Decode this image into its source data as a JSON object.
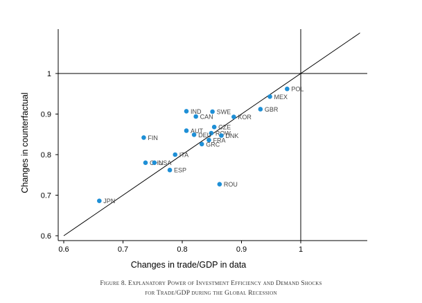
{
  "chart_data": {
    "type": "scatter",
    "xlabel": "Changes in trade/GDP in data",
    "ylabel": "Changes in counterfactual",
    "xlim": [
      0.6,
      1.1
    ],
    "ylim": [
      0.6,
      1.0
    ],
    "xticks": [
      "0.6",
      "0.7",
      "0.8",
      "0.9",
      "1"
    ],
    "yticks": [
      "0.6",
      "0.7",
      "0.8",
      "0.9",
      "1"
    ],
    "reference_lines": [
      "45-degree line",
      "x = 1",
      "y = 1"
    ],
    "marker_color": "#1e8fd6",
    "points": [
      {
        "label": "POL",
        "x": 0.977,
        "y": 0.962
      },
      {
        "label": "MEX",
        "x": 0.948,
        "y": 0.943
      },
      {
        "label": "GBR",
        "x": 0.932,
        "y": 0.912
      },
      {
        "label": "IND",
        "x": 0.807,
        "y": 0.907
      },
      {
        "label": "SWE",
        "x": 0.851,
        "y": 0.906
      },
      {
        "label": "CAN",
        "x": 0.823,
        "y": 0.894
      },
      {
        "label": "KOR",
        "x": 0.887,
        "y": 0.893
      },
      {
        "label": "CZE",
        "x": 0.854,
        "y": 0.868
      },
      {
        "label": "AUT",
        "x": 0.807,
        "y": 0.859
      },
      {
        "label": "ROW",
        "x": 0.849,
        "y": 0.853
      },
      {
        "label": "DEU",
        "x": 0.82,
        "y": 0.849
      },
      {
        "label": "DNK",
        "x": 0.866,
        "y": 0.847
      },
      {
        "label": "FIN",
        "x": 0.735,
        "y": 0.842
      },
      {
        "label": "FRA",
        "x": 0.845,
        "y": 0.836
      },
      {
        "label": "GRC",
        "x": 0.833,
        "y": 0.826
      },
      {
        "label": "ITA",
        "x": 0.788,
        "y": 0.8
      },
      {
        "label": "CHN",
        "x": 0.738,
        "y": 0.78
      },
      {
        "label": "USA",
        "x": 0.753,
        "y": 0.78
      },
      {
        "label": "ESP",
        "x": 0.779,
        "y": 0.762
      },
      {
        "label": "ROU",
        "x": 0.863,
        "y": 0.727
      },
      {
        "label": "JPN",
        "x": 0.66,
        "y": 0.686
      }
    ]
  },
  "caption": {
    "line1": "Figure 8. Explanatory Power of Investment Efficiency and Demand Shocks",
    "line2": "for Trade/GDP during the Global Recession"
  }
}
